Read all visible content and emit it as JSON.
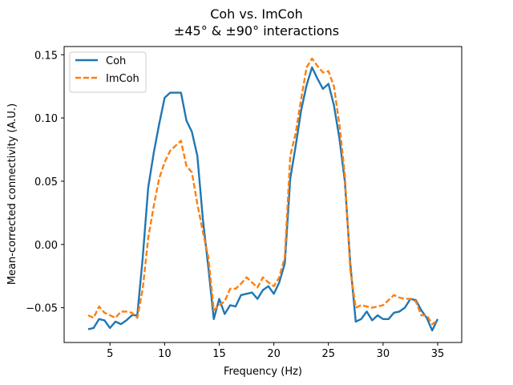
{
  "chart_data": {
    "type": "line",
    "title_line1": "Coh vs. ImCoh",
    "title_line2": "±45° & ±90° interactions",
    "xlabel": "Frequency (Hz)",
    "ylabel": "Mean-corrected connectivity (A.U.)",
    "xlim": [
      0.8,
      37.2
    ],
    "ylim": [
      -0.0775,
      0.1565
    ],
    "xticks": [
      5,
      10,
      15,
      20,
      25,
      30,
      35
    ],
    "xtick_labels": [
      "5",
      "10",
      "15",
      "20",
      "25",
      "30",
      "35"
    ],
    "yticks": [
      -0.05,
      0.0,
      0.05,
      0.1,
      0.15
    ],
    "ytick_labels": [
      "−0.05",
      "0.00",
      "0.05",
      "0.10",
      "0.15"
    ],
    "grid": false,
    "legend_position": "top-left",
    "x": [
      3,
      3.5,
      4,
      4.5,
      5,
      5.5,
      6,
      6.5,
      7,
      7.5,
      8,
      8.5,
      9,
      9.5,
      10,
      10.5,
      11,
      11.5,
      12,
      12.5,
      13,
      13.5,
      14,
      14.5,
      15,
      15.5,
      16,
      16.5,
      17,
      17.5,
      18,
      18.5,
      19,
      19.5,
      20,
      20.5,
      21,
      21.5,
      22,
      22.5,
      23,
      23.5,
      24,
      24.5,
      25,
      25.5,
      26,
      26.5,
      27,
      27.5,
      28,
      28.5,
      29,
      29.5,
      30,
      30.5,
      31,
      31.5,
      32,
      32.5,
      33,
      33.5,
      34,
      34.5,
      35
    ],
    "series": [
      {
        "name": "Coh",
        "color": "#1f77b4",
        "dash": "solid",
        "values": [
          -0.067,
          -0.066,
          -0.059,
          -0.06,
          -0.066,
          -0.061,
          -0.063,
          -0.06,
          -0.056,
          -0.056,
          -0.01,
          0.045,
          0.072,
          0.095,
          0.116,
          0.12,
          0.12,
          0.12,
          0.098,
          0.089,
          0.07,
          0.02,
          -0.018,
          -0.059,
          -0.043,
          -0.055,
          -0.048,
          -0.049,
          -0.04,
          -0.039,
          -0.038,
          -0.043,
          -0.036,
          -0.033,
          -0.039,
          -0.03,
          -0.015,
          0.052,
          0.078,
          0.106,
          0.126,
          0.14,
          0.131,
          0.123,
          0.127,
          0.11,
          0.084,
          0.05,
          -0.015,
          -0.061,
          -0.059,
          -0.053,
          -0.06,
          -0.056,
          -0.059,
          -0.059,
          -0.054,
          -0.053,
          -0.05,
          -0.043,
          -0.044,
          -0.052,
          -0.058,
          -0.068,
          -0.059
        ]
      },
      {
        "name": "ImCoh",
        "color": "#ff7f0e",
        "dash": "dashed",
        "values": [
          -0.056,
          -0.058,
          -0.049,
          -0.054,
          -0.056,
          -0.058,
          -0.053,
          -0.053,
          -0.054,
          -0.058,
          -0.035,
          0.005,
          0.03,
          0.052,
          0.065,
          0.074,
          0.078,
          0.082,
          0.062,
          0.057,
          0.032,
          0.01,
          -0.01,
          -0.052,
          -0.048,
          -0.045,
          -0.035,
          -0.035,
          -0.031,
          -0.026,
          -0.03,
          -0.034,
          -0.026,
          -0.03,
          -0.033,
          -0.026,
          -0.01,
          0.07,
          0.088,
          0.115,
          0.14,
          0.147,
          0.141,
          0.136,
          0.137,
          0.125,
          0.095,
          0.055,
          -0.02,
          -0.05,
          -0.048,
          -0.049,
          -0.05,
          -0.049,
          -0.048,
          -0.044,
          -0.04,
          -0.042,
          -0.043,
          -0.043,
          -0.045,
          -0.056,
          -0.056,
          -0.063,
          -0.06
        ]
      }
    ]
  }
}
